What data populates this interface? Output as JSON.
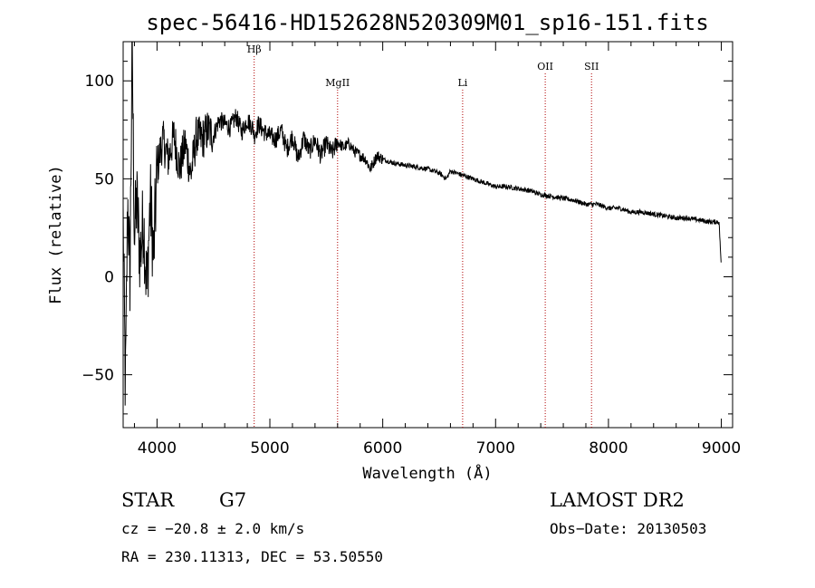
{
  "chart_data": {
    "type": "line",
    "title": "spec-56416-HD152628N520309M01_sp16-151.fits",
    "xlabel": "Wavelength (Å)",
    "ylabel": "Flux (relative)",
    "xlim": [
      3700,
      9100
    ],
    "ylim": [
      -77,
      120
    ],
    "x_ticks": [
      4000,
      5000,
      6000,
      7000,
      8000,
      9000
    ],
    "y_ticks": [
      -50,
      0,
      50,
      100
    ],
    "grid": false,
    "series": [
      {
        "color": "#000000",
        "x": [
          3700,
          3720,
          3740,
          3760,
          3780,
          3800,
          3820,
          3850,
          3880,
          3910,
          3940,
          3970,
          4000,
          4050,
          4100,
          4150,
          4200,
          4250,
          4300,
          4350,
          4400,
          4450,
          4500,
          4550,
          4600,
          4650,
          4700,
          4750,
          4800,
          4850,
          4861,
          4900,
          4950,
          5000,
          5050,
          5100,
          5150,
          5200,
          5250,
          5300,
          5350,
          5400,
          5450,
          5500,
          5550,
          5600,
          5650,
          5700,
          5750,
          5800,
          5850,
          5890,
          5950,
          6000,
          6100,
          6200,
          6300,
          6400,
          6500,
          6563,
          6600,
          6700,
          6800,
          6900,
          7000,
          7100,
          7200,
          7300,
          7400,
          7500,
          7600,
          7700,
          7800,
          7900,
          8000,
          8100,
          8200,
          8300,
          8400,
          8500,
          8600,
          8700,
          8800,
          8900,
          8980,
          9000
        ],
        "y": [
          30,
          -60,
          40,
          0,
          118,
          20,
          40,
          10,
          30,
          -8,
          40,
          10,
          55,
          70,
          60,
          72,
          55,
          68,
          52,
          72,
          70,
          75,
          72,
          80,
          78,
          76,
          82,
          74,
          80,
          76,
          72,
          78,
          74,
          72,
          70,
          75,
          65,
          72,
          60,
          71,
          64,
          70,
          62,
          68,
          63,
          69,
          66,
          68,
          64,
          62,
          60,
          55,
          62,
          60,
          58,
          57,
          56,
          55,
          53,
          50,
          54,
          52,
          50,
          48,
          46,
          46,
          45,
          44,
          42,
          41,
          40,
          39,
          37,
          37,
          35,
          35,
          33,
          33,
          32,
          31,
          30,
          30,
          29,
          28,
          28,
          5
        ]
      }
    ],
    "lines": [
      {
        "label": "Hβ",
        "x": 4861
      },
      {
        "label": "MgII",
        "x": 5600
      },
      {
        "label": "Li",
        "x": 6708
      },
      {
        "label": "OII",
        "x": 7440
      },
      {
        "label": "SII",
        "x": 7850
      }
    ]
  },
  "info": {
    "object_type": "STAR",
    "subclass": "G7",
    "survey": "LAMOST DR2",
    "redshift": "cz = −20.8 ± 2.0 km/s",
    "obs_date": "Obs−Date: 20130503",
    "coords": "RA = 230.11313, DEC =  53.50550"
  }
}
